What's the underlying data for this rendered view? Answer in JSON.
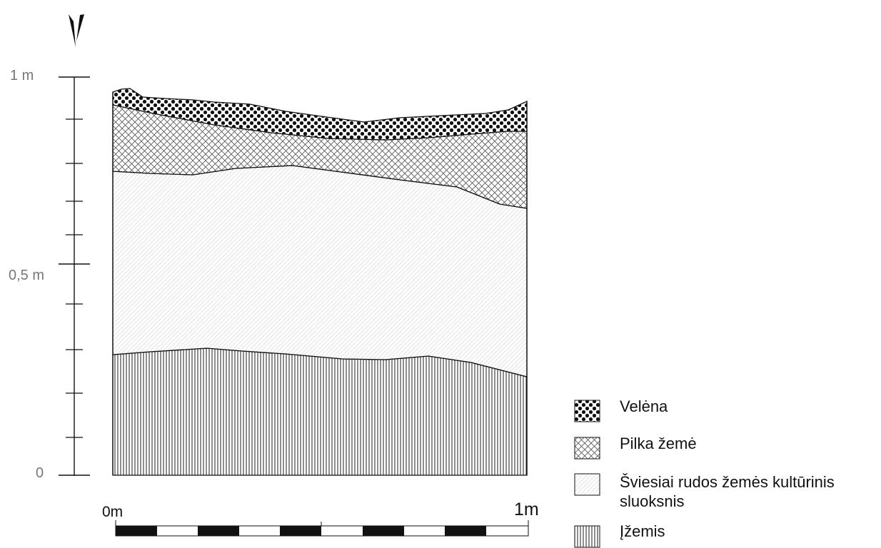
{
  "vertical_axis": {
    "top_label": "1 m",
    "mid_label": "0,5 m",
    "bottom_label": "0"
  },
  "scale_bar": {
    "start_label": "0m",
    "end_label": "1m"
  },
  "legend": {
    "items": [
      {
        "label": "Velėna",
        "pattern": "dots"
      },
      {
        "label": "Pilka žemė",
        "pattern": "crosshatch"
      },
      {
        "label": "Šviesiai rudos žemės kultūrinis",
        "label2": "sluoksnis",
        "pattern": "diagonal"
      },
      {
        "label": "Įžemis",
        "pattern": "vertical"
      }
    ]
  },
  "colors": {
    "ink": "#111111",
    "fill_light": "#ffffff"
  }
}
